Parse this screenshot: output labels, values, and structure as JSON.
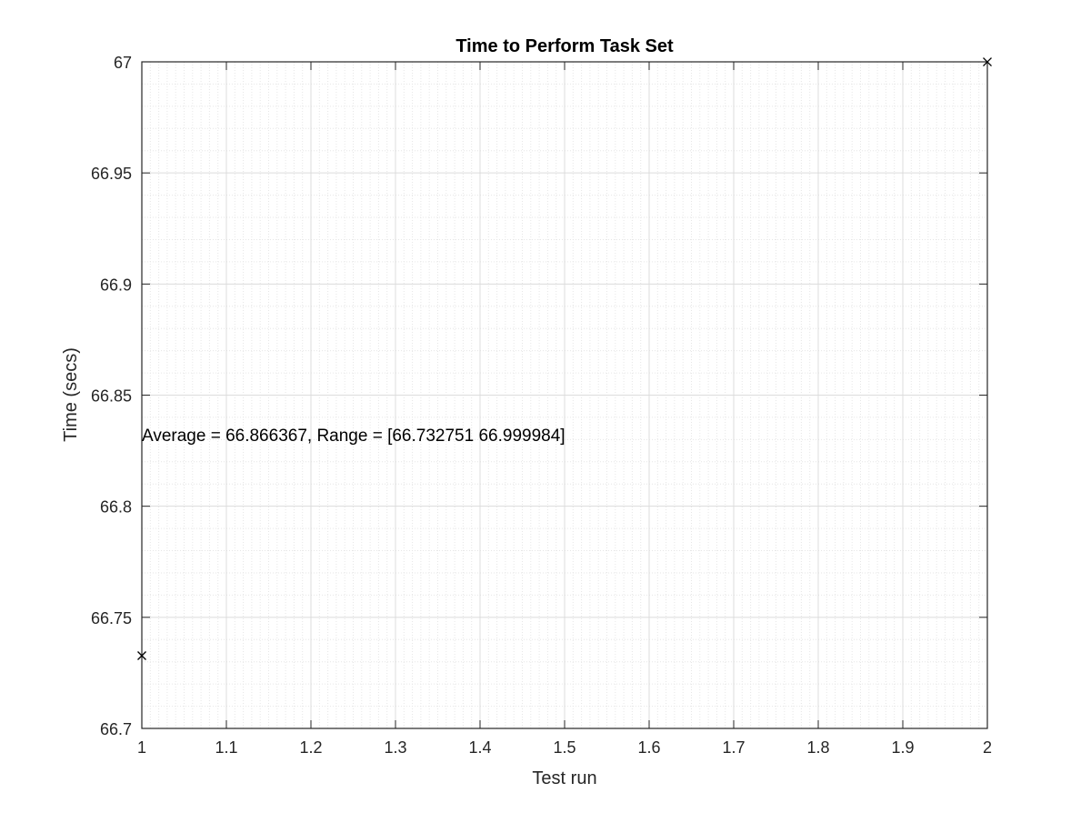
{
  "chart_data": {
    "type": "scatter",
    "title": "Time to Perform Task Set",
    "xlabel": "Test run",
    "ylabel": "Time (secs)",
    "xlim": [
      1,
      2
    ],
    "ylim": [
      66.7,
      67
    ],
    "x_ticks": [
      "1",
      "1.1",
      "1.2",
      "1.3",
      "1.4",
      "1.5",
      "1.6",
      "1.7",
      "1.8",
      "1.9",
      "2"
    ],
    "y_ticks": [
      "66.7",
      "66.75",
      "66.8",
      "66.85",
      "66.9",
      "66.95",
      "67"
    ],
    "grid": true,
    "minor_grid": true,
    "marker": "x",
    "series": [
      {
        "x": [
          1,
          2
        ],
        "y": [
          66.732751,
          66.999984
        ]
      }
    ],
    "annotation": "Average = 66.866367, Range = [66.732751 66.999984]",
    "colors": {
      "marker": "#000000",
      "axes": "#262626",
      "major_grid": "#dcdcdc",
      "minor_grid": "#e6e6e6"
    }
  }
}
